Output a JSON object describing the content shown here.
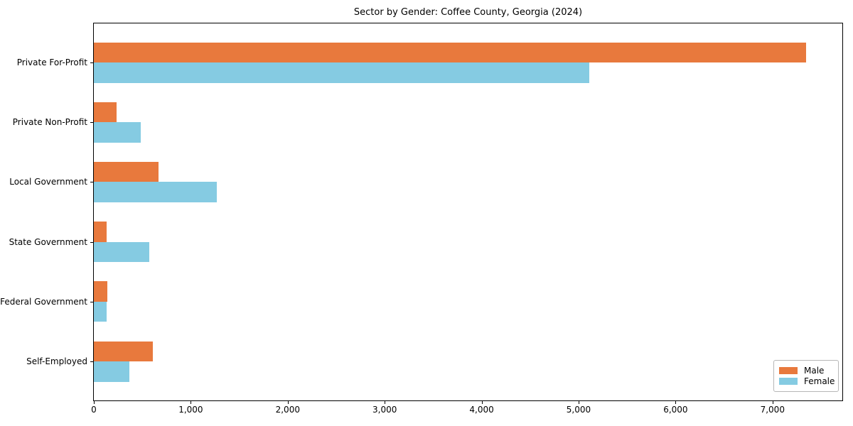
{
  "chart_data": {
    "type": "bar",
    "orientation": "horizontal",
    "title": "Sector by Gender: Coffee County, Georgia (2024)",
    "categories": [
      "Private For-Profit",
      "Private Non-Profit",
      "Local Government",
      "State Government",
      "Federal Government",
      "Self-Employed"
    ],
    "series": [
      {
        "name": "Male",
        "color": "#e8793d",
        "values": [
          7345,
          235,
          665,
          130,
          140,
          605
        ]
      },
      {
        "name": "Female",
        "color": "#85cbe2",
        "values": [
          5110,
          485,
          1270,
          570,
          130,
          365
        ]
      }
    ],
    "xlim": [
      0,
      7720
    ],
    "x_ticks": [
      {
        "value": 0,
        "label": "0"
      },
      {
        "value": 1000,
        "label": "1,000"
      },
      {
        "value": 2000,
        "label": "2,000"
      },
      {
        "value": 3000,
        "label": "3,000"
      },
      {
        "value": 4000,
        "label": "4,000"
      },
      {
        "value": 5000,
        "label": "5,000"
      },
      {
        "value": 6000,
        "label": "6,000"
      },
      {
        "value": 7000,
        "label": "7,000"
      }
    ],
    "legend": {
      "position": "lower-right",
      "labels": [
        "Male",
        "Female"
      ]
    },
    "grid": false,
    "axis_color": "#000000",
    "background_color": "#ffffff"
  }
}
